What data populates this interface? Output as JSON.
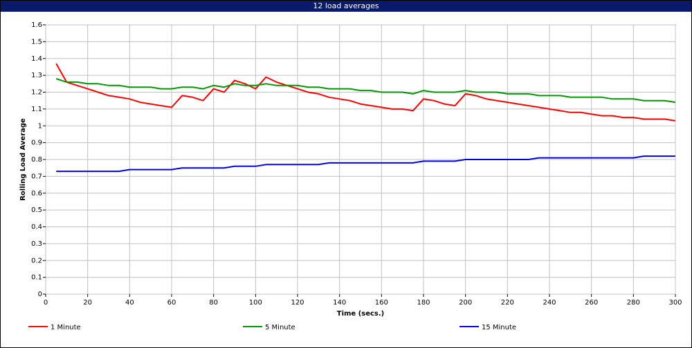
{
  "window": {
    "title": "12 load averages",
    "title_bg": "#0a1a6a"
  },
  "chart_data": {
    "type": "line",
    "xlabel": "Time (secs.)",
    "ylabel": "Rolling Load Average",
    "xlim": [
      0,
      300
    ],
    "ylim": [
      0,
      1.6
    ],
    "x_ticks": [
      0,
      20,
      40,
      60,
      80,
      100,
      120,
      140,
      160,
      180,
      200,
      220,
      240,
      260,
      280,
      300
    ],
    "y_ticks": [
      "0",
      "0.1",
      "0.2",
      "0.3",
      "0.4",
      "0.5",
      "0.6",
      "0.7",
      "0.8",
      "0.9",
      "1",
      "1.1",
      "1.2",
      "1.3",
      "1.4",
      "1.5",
      "1.6"
    ],
    "grid": true,
    "legend_position": "bottom",
    "x": [
      5,
      10,
      15,
      20,
      25,
      30,
      35,
      40,
      45,
      50,
      55,
      60,
      65,
      70,
      75,
      80,
      85,
      90,
      95,
      100,
      105,
      110,
      115,
      120,
      125,
      130,
      135,
      140,
      145,
      150,
      155,
      160,
      165,
      170,
      175,
      180,
      185,
      190,
      195,
      200,
      205,
      210,
      215,
      220,
      225,
      230,
      235,
      240,
      245,
      250,
      255,
      260,
      265,
      270,
      275,
      280,
      285,
      290,
      295,
      300
    ],
    "series": [
      {
        "name": "1 Minute",
        "color": "#ff0000",
        "values": [
          1.37,
          1.26,
          1.24,
          1.22,
          1.2,
          1.18,
          1.17,
          1.16,
          1.14,
          1.13,
          1.12,
          1.11,
          1.18,
          1.17,
          1.15,
          1.22,
          1.2,
          1.27,
          1.25,
          1.22,
          1.29,
          1.26,
          1.24,
          1.22,
          1.2,
          1.19,
          1.17,
          1.16,
          1.15,
          1.13,
          1.12,
          1.11,
          1.1,
          1.1,
          1.09,
          1.16,
          1.15,
          1.13,
          1.12,
          1.19,
          1.18,
          1.16,
          1.15,
          1.14,
          1.13,
          1.12,
          1.11,
          1.1,
          1.09,
          1.08,
          1.08,
          1.07,
          1.06,
          1.06,
          1.05,
          1.05,
          1.04,
          1.04,
          1.04,
          1.03
        ]
      },
      {
        "name": "5 Minute",
        "color": "#009900",
        "values": [
          1.28,
          1.26,
          1.26,
          1.25,
          1.25,
          1.24,
          1.24,
          1.23,
          1.23,
          1.23,
          1.22,
          1.22,
          1.23,
          1.23,
          1.22,
          1.24,
          1.23,
          1.25,
          1.24,
          1.24,
          1.25,
          1.24,
          1.24,
          1.24,
          1.23,
          1.23,
          1.22,
          1.22,
          1.22,
          1.21,
          1.21,
          1.2,
          1.2,
          1.2,
          1.19,
          1.21,
          1.2,
          1.2,
          1.2,
          1.21,
          1.2,
          1.2,
          1.2,
          1.19,
          1.19,
          1.19,
          1.18,
          1.18,
          1.18,
          1.17,
          1.17,
          1.17,
          1.17,
          1.16,
          1.16,
          1.16,
          1.15,
          1.15,
          1.15,
          1.14
        ]
      },
      {
        "name": "15 Minute",
        "color": "#0000ee",
        "values": [
          0.73,
          0.73,
          0.73,
          0.73,
          0.73,
          0.73,
          0.73,
          0.74,
          0.74,
          0.74,
          0.74,
          0.74,
          0.75,
          0.75,
          0.75,
          0.75,
          0.75,
          0.76,
          0.76,
          0.76,
          0.77,
          0.77,
          0.77,
          0.77,
          0.77,
          0.77,
          0.78,
          0.78,
          0.78,
          0.78,
          0.78,
          0.78,
          0.78,
          0.78,
          0.78,
          0.79,
          0.79,
          0.79,
          0.79,
          0.8,
          0.8,
          0.8,
          0.8,
          0.8,
          0.8,
          0.8,
          0.81,
          0.81,
          0.81,
          0.81,
          0.81,
          0.81,
          0.81,
          0.81,
          0.81,
          0.81,
          0.82,
          0.82,
          0.82,
          0.82
        ]
      }
    ]
  }
}
